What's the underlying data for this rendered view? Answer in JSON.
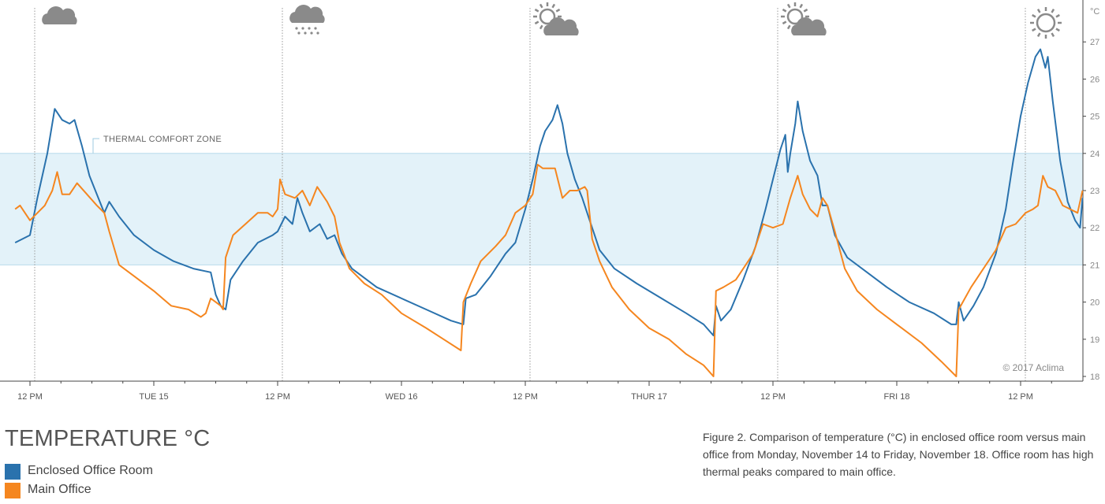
{
  "title": "TEMPERATURE °C",
  "caption": "Figure 2. Comparison of temperature (°C) in enclosed office room versus main office from Monday, November 14 to Friday, November 18. Office room has high thermal peaks compared to main office.",
  "legend": [
    {
      "label": "Enclosed Office Room",
      "color": "#2a72ad"
    },
    {
      "label": "Main Office",
      "color": "#f5861f"
    }
  ],
  "chart_data": {
    "type": "line",
    "y_unit": "°C",
    "ylim": [
      18,
      28
    ],
    "y_ticks": [
      18,
      19,
      20,
      21,
      22,
      23,
      24,
      25,
      26,
      27
    ],
    "x_ticks": [
      {
        "label": "12 PM",
        "day": 0.5
      },
      {
        "label": "TUE 15",
        "day": 1
      },
      {
        "label": "12 PM",
        "day": 1.5
      },
      {
        "label": "WED 16",
        "day": 2
      },
      {
        "label": "12 PM",
        "day": 2.5
      },
      {
        "label": "THUR 17",
        "day": 3
      },
      {
        "label": "12 PM",
        "day": 3.5
      },
      {
        "label": "FRI 18",
        "day": 4
      },
      {
        "label": "12 PM",
        "day": 4.5
      }
    ],
    "comfort_zone": {
      "label": "THERMAL COMFORT ZONE",
      "low": 21,
      "high": 24
    },
    "weather": [
      {
        "day": 0.5,
        "icon": "cloud-icon"
      },
      {
        "day": 1.5,
        "icon": "rain-cloud-icon"
      },
      {
        "day": 2.5,
        "icon": "partly-sunny-icon"
      },
      {
        "day": 3.5,
        "icon": "partly-sunny-icon"
      },
      {
        "day": 4.5,
        "icon": "sun-icon"
      }
    ],
    "copyright": "© 2017 Aclima",
    "series": [
      {
        "name": "Enclosed Office Room",
        "color": "#2a72ad",
        "points": [
          [
            0.44,
            21.6
          ],
          [
            0.5,
            21.8
          ],
          [
            0.53,
            22.8
          ],
          [
            0.57,
            24.0
          ],
          [
            0.6,
            25.2
          ],
          [
            0.63,
            24.9
          ],
          [
            0.66,
            24.8
          ],
          [
            0.68,
            24.9
          ],
          [
            0.71,
            24.2
          ],
          [
            0.74,
            23.4
          ],
          [
            0.77,
            22.9
          ],
          [
            0.8,
            22.4
          ],
          [
            0.82,
            22.7
          ],
          [
            0.86,
            22.3
          ],
          [
            0.92,
            21.8
          ],
          [
            1.0,
            21.4
          ],
          [
            1.08,
            21.1
          ],
          [
            1.16,
            20.9
          ],
          [
            1.23,
            20.8
          ],
          [
            1.25,
            20.2
          ],
          [
            1.27,
            19.9
          ],
          [
            1.29,
            19.8
          ],
          [
            1.31,
            20.6
          ],
          [
            1.36,
            21.1
          ],
          [
            1.42,
            21.6
          ],
          [
            1.48,
            21.8
          ],
          [
            1.5,
            21.9
          ],
          [
            1.53,
            22.3
          ],
          [
            1.56,
            22.1
          ],
          [
            1.58,
            22.8
          ],
          [
            1.6,
            22.4
          ],
          [
            1.63,
            21.9
          ],
          [
            1.67,
            22.1
          ],
          [
            1.7,
            21.7
          ],
          [
            1.73,
            21.8
          ],
          [
            1.76,
            21.3
          ],
          [
            1.8,
            20.9
          ],
          [
            1.9,
            20.4
          ],
          [
            2.0,
            20.1
          ],
          [
            2.1,
            19.8
          ],
          [
            2.2,
            19.5
          ],
          [
            2.25,
            19.4
          ],
          [
            2.26,
            20.1
          ],
          [
            2.3,
            20.2
          ],
          [
            2.36,
            20.7
          ],
          [
            2.42,
            21.3
          ],
          [
            2.46,
            21.6
          ],
          [
            2.5,
            22.5
          ],
          [
            2.53,
            23.3
          ],
          [
            2.56,
            24.2
          ],
          [
            2.58,
            24.6
          ],
          [
            2.61,
            24.9
          ],
          [
            2.63,
            25.3
          ],
          [
            2.65,
            24.8
          ],
          [
            2.67,
            24.0
          ],
          [
            2.7,
            23.3
          ],
          [
            2.73,
            22.8
          ],
          [
            2.76,
            22.2
          ],
          [
            2.78,
            21.8
          ],
          [
            2.8,
            21.4
          ],
          [
            2.86,
            20.9
          ],
          [
            2.95,
            20.5
          ],
          [
            3.05,
            20.1
          ],
          [
            3.15,
            19.7
          ],
          [
            3.22,
            19.4
          ],
          [
            3.26,
            19.1
          ],
          [
            3.27,
            19.9
          ],
          [
            3.29,
            19.5
          ],
          [
            3.33,
            19.8
          ],
          [
            3.38,
            20.6
          ],
          [
            3.43,
            21.5
          ],
          [
            3.47,
            22.5
          ],
          [
            3.5,
            23.3
          ],
          [
            3.53,
            24.1
          ],
          [
            3.55,
            24.5
          ],
          [
            3.56,
            23.5
          ],
          [
            3.57,
            24.0
          ],
          [
            3.59,
            24.8
          ],
          [
            3.6,
            25.4
          ],
          [
            3.62,
            24.6
          ],
          [
            3.65,
            23.8
          ],
          [
            3.68,
            23.4
          ],
          [
            3.7,
            22.6
          ],
          [
            3.72,
            22.6
          ],
          [
            3.75,
            21.8
          ],
          [
            3.8,
            21.2
          ],
          [
            3.88,
            20.8
          ],
          [
            3.96,
            20.4
          ],
          [
            4.05,
            20.0
          ],
          [
            4.15,
            19.7
          ],
          [
            4.22,
            19.4
          ],
          [
            4.24,
            19.4
          ],
          [
            4.25,
            20.0
          ],
          [
            4.27,
            19.5
          ],
          [
            4.31,
            19.9
          ],
          [
            4.35,
            20.4
          ],
          [
            4.4,
            21.3
          ],
          [
            4.44,
            22.5
          ],
          [
            4.47,
            23.8
          ],
          [
            4.5,
            25.0
          ],
          [
            4.53,
            25.9
          ],
          [
            4.56,
            26.6
          ],
          [
            4.58,
            26.8
          ],
          [
            4.6,
            26.3
          ],
          [
            4.61,
            26.6
          ],
          [
            4.63,
            25.4
          ],
          [
            4.66,
            23.8
          ],
          [
            4.69,
            22.7
          ],
          [
            4.72,
            22.2
          ],
          [
            4.74,
            22.0
          ],
          [
            4.75,
            22.8
          ]
        ]
      },
      {
        "name": "Main Office",
        "color": "#f5861f",
        "points": [
          [
            0.44,
            22.5
          ],
          [
            0.46,
            22.6
          ],
          [
            0.5,
            22.2
          ],
          [
            0.56,
            22.6
          ],
          [
            0.59,
            23.0
          ],
          [
            0.61,
            23.5
          ],
          [
            0.63,
            22.9
          ],
          [
            0.66,
            22.9
          ],
          [
            0.69,
            23.2
          ],
          [
            0.73,
            22.9
          ],
          [
            0.77,
            22.6
          ],
          [
            0.8,
            22.4
          ],
          [
            0.82,
            21.9
          ],
          [
            0.86,
            21.0
          ],
          [
            0.92,
            20.7
          ],
          [
            1.0,
            20.3
          ],
          [
            1.07,
            19.9
          ],
          [
            1.14,
            19.8
          ],
          [
            1.19,
            19.6
          ],
          [
            1.21,
            19.7
          ],
          [
            1.23,
            20.1
          ],
          [
            1.25,
            20.0
          ],
          [
            1.27,
            19.9
          ],
          [
            1.28,
            19.8
          ],
          [
            1.29,
            21.2
          ],
          [
            1.32,
            21.8
          ],
          [
            1.37,
            22.1
          ],
          [
            1.42,
            22.4
          ],
          [
            1.46,
            22.4
          ],
          [
            1.48,
            22.3
          ],
          [
            1.5,
            22.5
          ],
          [
            1.51,
            23.3
          ],
          [
            1.53,
            22.9
          ],
          [
            1.57,
            22.8
          ],
          [
            1.6,
            23.0
          ],
          [
            1.63,
            22.6
          ],
          [
            1.66,
            23.1
          ],
          [
            1.7,
            22.7
          ],
          [
            1.73,
            22.3
          ],
          [
            1.75,
            21.6
          ],
          [
            1.79,
            20.9
          ],
          [
            1.85,
            20.5
          ],
          [
            1.92,
            20.2
          ],
          [
            2.0,
            19.7
          ],
          [
            2.1,
            19.3
          ],
          [
            2.17,
            19.0
          ],
          [
            2.24,
            18.7
          ],
          [
            2.25,
            20.0
          ],
          [
            2.28,
            20.5
          ],
          [
            2.32,
            21.1
          ],
          [
            2.38,
            21.5
          ],
          [
            2.42,
            21.8
          ],
          [
            2.46,
            22.4
          ],
          [
            2.5,
            22.6
          ],
          [
            2.53,
            22.9
          ],
          [
            2.55,
            23.7
          ],
          [
            2.57,
            23.6
          ],
          [
            2.6,
            23.6
          ],
          [
            2.62,
            23.6
          ],
          [
            2.65,
            22.8
          ],
          [
            2.68,
            23.0
          ],
          [
            2.71,
            23.0
          ],
          [
            2.74,
            23.1
          ],
          [
            2.75,
            23.0
          ],
          [
            2.77,
            21.7
          ],
          [
            2.8,
            21.1
          ],
          [
            2.85,
            20.4
          ],
          [
            2.92,
            19.8
          ],
          [
            3.0,
            19.3
          ],
          [
            3.08,
            19.0
          ],
          [
            3.15,
            18.6
          ],
          [
            3.22,
            18.3
          ],
          [
            3.26,
            18.0
          ],
          [
            3.27,
            20.3
          ],
          [
            3.3,
            20.4
          ],
          [
            3.35,
            20.6
          ],
          [
            3.42,
            21.3
          ],
          [
            3.46,
            22.1
          ],
          [
            3.5,
            22.0
          ],
          [
            3.54,
            22.1
          ],
          [
            3.57,
            22.8
          ],
          [
            3.6,
            23.4
          ],
          [
            3.62,
            22.9
          ],
          [
            3.65,
            22.5
          ],
          [
            3.68,
            22.3
          ],
          [
            3.7,
            22.8
          ],
          [
            3.72,
            22.6
          ],
          [
            3.75,
            21.9
          ],
          [
            3.79,
            20.9
          ],
          [
            3.84,
            20.3
          ],
          [
            3.92,
            19.8
          ],
          [
            4.0,
            19.4
          ],
          [
            4.1,
            18.9
          ],
          [
            4.18,
            18.4
          ],
          [
            4.24,
            18.0
          ],
          [
            4.25,
            19.8
          ],
          [
            4.3,
            20.4
          ],
          [
            4.35,
            20.9
          ],
          [
            4.4,
            21.4
          ],
          [
            4.44,
            22.0
          ],
          [
            4.48,
            22.1
          ],
          [
            4.52,
            22.4
          ],
          [
            4.55,
            22.5
          ],
          [
            4.57,
            22.6
          ],
          [
            4.59,
            23.4
          ],
          [
            4.61,
            23.1
          ],
          [
            4.64,
            23.0
          ],
          [
            4.67,
            22.6
          ],
          [
            4.7,
            22.5
          ],
          [
            4.73,
            22.4
          ],
          [
            4.75,
            23.0
          ]
        ]
      }
    ]
  }
}
